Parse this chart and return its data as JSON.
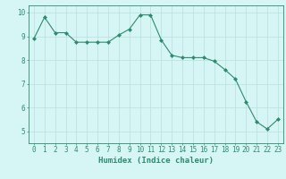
{
  "x": [
    0,
    1,
    2,
    3,
    4,
    5,
    6,
    7,
    8,
    9,
    10,
    11,
    12,
    13,
    14,
    15,
    16,
    17,
    18,
    19,
    20,
    21,
    22,
    23
  ],
  "y": [
    8.9,
    9.8,
    9.15,
    9.15,
    8.75,
    8.75,
    8.75,
    8.75,
    9.05,
    9.3,
    9.9,
    9.9,
    8.85,
    8.2,
    8.1,
    8.1,
    8.1,
    7.95,
    7.6,
    7.2,
    6.25,
    5.4,
    5.1,
    5.5
  ],
  "line_color": "#2e8b6e",
  "marker": "D",
  "marker_size": 2.0,
  "bg_color": "#d6f5f5",
  "grid_color": "#b8dfdf",
  "xlabel": "Humidex (Indice chaleur)",
  "ylim": [
    4.5,
    10.3
  ],
  "xlim": [
    -0.5,
    23.5
  ],
  "yticks": [
    5,
    6,
    7,
    8,
    9,
    10
  ],
  "xticks": [
    0,
    1,
    2,
    3,
    4,
    5,
    6,
    7,
    8,
    9,
    10,
    11,
    12,
    13,
    14,
    15,
    16,
    17,
    18,
    19,
    20,
    21,
    22,
    23
  ],
  "label_fontsize": 6.5,
  "tick_fontsize": 5.5
}
